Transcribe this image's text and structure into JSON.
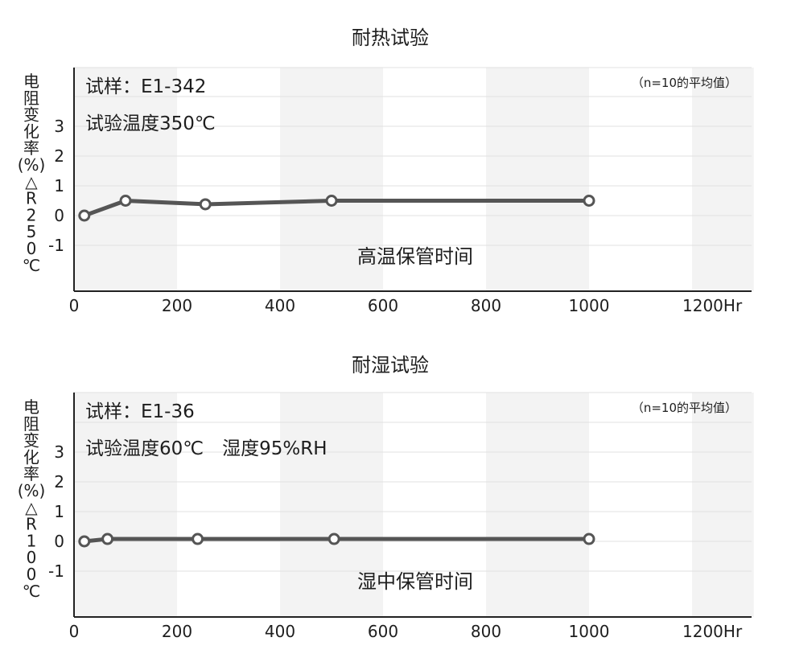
{
  "chart_data": [
    {
      "type": "line",
      "title": "耐热试验",
      "ylabel_chars": [
        "电",
        "阻",
        "变",
        "化",
        "率",
        "(%)",
        "△",
        "R",
        "2",
        "5",
        "0",
        "℃"
      ],
      "sample_label": "试样：E1-342",
      "condition_label": "试验温度350℃",
      "note": "（n=10的平均值）",
      "xlabel": "高温保管时间",
      "x_ticks": [
        "0",
        "200",
        "400",
        "600",
        "800",
        "1000",
        "1200Hr"
      ],
      "y_ticks": [
        "3",
        "2",
        "1",
        "0",
        "-1"
      ],
      "xlim": [
        0,
        1320
      ],
      "ylim": [
        -2.5,
        4.9
      ],
      "grid": true,
      "series": [
        {
          "x": [
            20,
            100,
            255,
            500,
            1000
          ],
          "y": [
            0.0,
            0.5,
            0.38,
            0.5,
            0.5
          ]
        }
      ]
    },
    {
      "type": "line",
      "title": "耐湿试验",
      "ylabel_chars": [
        "电",
        "阻",
        "变",
        "化",
        "率",
        "(%)",
        "△",
        "R",
        "1",
        "0",
        "0",
        "℃"
      ],
      "sample_label": "试样：E1-36",
      "condition_label": "试验温度60℃　湿度95%RH",
      "note": "（n=10的平均值）",
      "xlabel": "湿中保管时间",
      "x_ticks": [
        "0",
        "200",
        "400",
        "600",
        "800",
        "1000",
        "1200Hr"
      ],
      "y_ticks": [
        "3",
        "2",
        "1",
        "0",
        "-1"
      ],
      "xlim": [
        0,
        1320
      ],
      "ylim": [
        -2.5,
        4.9
      ],
      "grid": true,
      "series": [
        {
          "x": [
            20,
            65,
            240,
            505,
            1000
          ],
          "y": [
            0.0,
            0.08,
            0.08,
            0.08,
            0.08
          ]
        }
      ]
    }
  ]
}
